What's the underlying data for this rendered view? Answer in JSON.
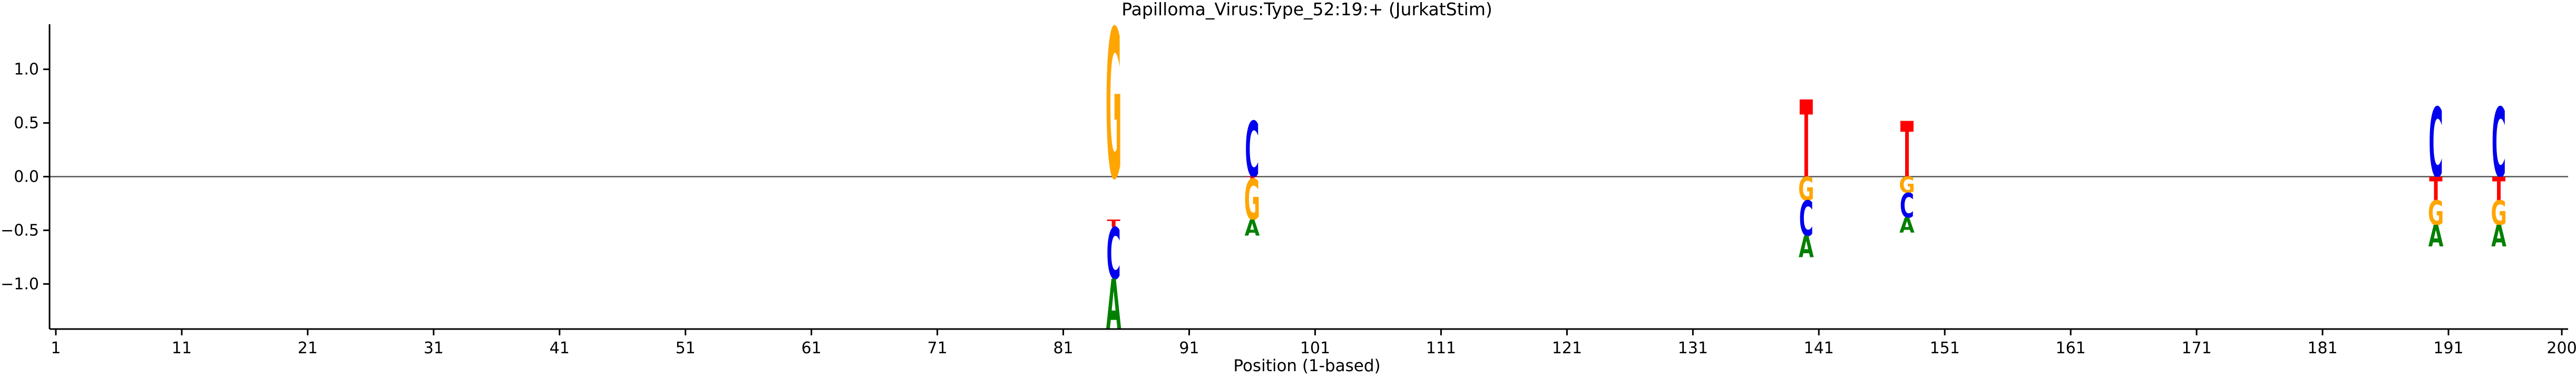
{
  "chart_data": {
    "type": "sequence-logo",
    "title": "Papilloma_Virus:Type_52:19:+  (JurkatStim)",
    "xlabel": "Position (1-based)",
    "ylabel": "",
    "xlim": [
      0.5,
      200.5
    ],
    "ylim": [
      -1.42,
      1.42
    ],
    "x_ticks": [
      1,
      11,
      21,
      31,
      41,
      51,
      61,
      71,
      81,
      91,
      101,
      111,
      121,
      131,
      141,
      151,
      161,
      171,
      181,
      191,
      200
    ],
    "y_ticks": [
      -1.0,
      -0.5,
      0.0,
      0.5,
      1.0
    ],
    "y_tick_labels": [
      "−1.0",
      "−0.5",
      "0.0",
      "0.5",
      "1.0"
    ],
    "zero_line": true,
    "grid": false,
    "colors": {
      "A": "#008000",
      "C": "#0000ee",
      "G": "#ffa500",
      "T": "#ff0000"
    },
    "positions": [
      {
        "pos": 85,
        "letters": [
          {
            "base": "G",
            "y0": 0.0,
            "y1": 1.39
          },
          {
            "base": "T",
            "y0": -0.47,
            "y1": -0.4
          },
          {
            "base": "C",
            "y0": -0.95,
            "y1": -0.47
          },
          {
            "base": "A",
            "y0": -1.42,
            "y1": -0.95
          }
        ]
      },
      {
        "pos": 96,
        "letters": [
          {
            "base": "C",
            "y0": 0.0,
            "y1": 0.52
          },
          {
            "base": "T",
            "y0": -0.02,
            "y1": 0.0
          },
          {
            "base": "G",
            "y0": -0.4,
            "y1": -0.02
          },
          {
            "base": "A",
            "y0": -0.55,
            "y1": -0.4
          }
        ]
      },
      {
        "pos": 140,
        "letters": [
          {
            "base": "T",
            "y0": 0.0,
            "y1": 0.72
          },
          {
            "base": "G",
            "y0": -0.22,
            "y1": 0.0
          },
          {
            "base": "C",
            "y0": -0.55,
            "y1": -0.22
          },
          {
            "base": "A",
            "y0": -0.75,
            "y1": -0.55
          }
        ]
      },
      {
        "pos": 148,
        "letters": [
          {
            "base": "T",
            "y0": 0.0,
            "y1": 0.52
          },
          {
            "base": "G",
            "y0": -0.15,
            "y1": 0.0
          },
          {
            "base": "C",
            "y0": -0.38,
            "y1": -0.15
          },
          {
            "base": "A",
            "y0": -0.52,
            "y1": -0.38
          }
        ]
      },
      {
        "pos": 190,
        "letters": [
          {
            "base": "C",
            "y0": 0.0,
            "y1": 0.65
          },
          {
            "base": "T",
            "y0": -0.22,
            "y1": 0.0
          },
          {
            "base": "G",
            "y0": -0.45,
            "y1": -0.22
          },
          {
            "base": "A",
            "y0": -0.65,
            "y1": -0.45
          }
        ]
      },
      {
        "pos": 195,
        "letters": [
          {
            "base": "C",
            "y0": 0.0,
            "y1": 0.65
          },
          {
            "base": "T",
            "y0": -0.22,
            "y1": 0.0
          },
          {
            "base": "G",
            "y0": -0.45,
            "y1": -0.22
          },
          {
            "base": "A",
            "y0": -0.65,
            "y1": -0.45
          }
        ]
      }
    ]
  }
}
